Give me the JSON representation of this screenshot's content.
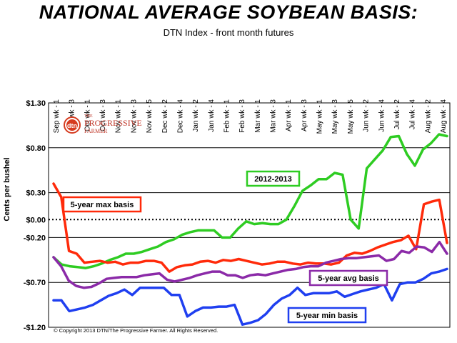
{
  "chart_data": {
    "type": "line",
    "title": "NATIONAL AVERAGE SOYBEAN BASIS:",
    "subtitle": "DTN Index - front month futures",
    "ylabel": "Cents per bushel",
    "ylim": [
      -1.2,
      1.3
    ],
    "yticks": [
      {
        "value": 1.3,
        "label": "$1.30"
      },
      {
        "value": 0.8,
        "label": "$0.80"
      },
      {
        "value": 0.3,
        "label": "$0.30"
      },
      {
        "value": 0.0,
        "label": "$0.00"
      },
      {
        "value": -0.2,
        "label": "-$0.20"
      },
      {
        "value": -0.7,
        "label": "-$0.70"
      },
      {
        "value": -1.2,
        "label": "-$1.20"
      }
    ],
    "xticks": [
      "Sep wk - 1",
      "Sep wk - 3",
      "Oct wk - 1",
      "Oct wk - 3",
      "Nov wk - 1",
      "Nov wk - 3",
      "Nov wk - 5",
      "Dec wk - 2",
      "Dec wk - 4",
      "Jan wk - 2",
      "Jan wk - 4",
      "Feb wk - 1",
      "Feb wk - 3",
      "Mar wk - 1",
      "Mar wk - 3",
      "Apr wk - 1",
      "Apr wk - 3",
      "May wk - 1",
      "May wk - 3",
      "May wk - 5",
      "Jun wk - 2",
      "Jun wk - 4",
      "Jul wk - 2",
      "Jul wk - 4",
      "Aug wk - 2",
      "Aug wk - 4"
    ],
    "series": [
      {
        "name": "2012-2013",
        "color": "#2ecc22",
        "values": [
          -0.42,
          -0.5,
          -0.52,
          -0.53,
          -0.54,
          -0.52,
          -0.49,
          -0.45,
          -0.42,
          -0.38,
          -0.38,
          -0.36,
          -0.33,
          -0.3,
          -0.25,
          -0.22,
          -0.17,
          -0.14,
          -0.12,
          -0.12,
          -0.12,
          -0.2,
          -0.2,
          -0.1,
          -0.02,
          -0.05,
          -0.04,
          -0.05,
          -0.05,
          0.0,
          0.15,
          0.32,
          0.38,
          0.45,
          0.45,
          0.52,
          0.5,
          0.0,
          -0.1,
          0.57,
          0.67,
          0.77,
          0.92,
          0.93,
          0.73,
          0.6,
          0.78,
          0.85,
          0.95,
          0.93
        ]
      },
      {
        "name": "5-year max basis",
        "color": "#ff2a0a",
        "values": [
          0.4,
          0.25,
          -0.35,
          -0.38,
          -0.48,
          -0.47,
          -0.46,
          -0.48,
          -0.47,
          -0.5,
          -0.48,
          -0.48,
          -0.46,
          -0.46,
          -0.48,
          -0.58,
          -0.53,
          -0.51,
          -0.5,
          -0.47,
          -0.46,
          -0.48,
          -0.45,
          -0.46,
          -0.44,
          -0.46,
          -0.48,
          -0.5,
          -0.49,
          -0.47,
          -0.47,
          -0.49,
          -0.5,
          -0.48,
          -0.49,
          -0.49,
          -0.5,
          -0.48,
          -0.4,
          -0.37,
          -0.38,
          -0.35,
          -0.31,
          -0.28,
          -0.25,
          -0.23,
          -0.18,
          -0.33,
          0.17,
          0.2,
          0.22,
          -0.26
        ]
      },
      {
        "name": "5-year avg basis",
        "color": "#8b2aa8",
        "values": [
          -0.42,
          -0.52,
          -0.68,
          -0.74,
          -0.76,
          -0.75,
          -0.71,
          -0.66,
          -0.65,
          -0.64,
          -0.64,
          -0.64,
          -0.62,
          -0.61,
          -0.6,
          -0.67,
          -0.69,
          -0.67,
          -0.65,
          -0.62,
          -0.6,
          -0.58,
          -0.58,
          -0.62,
          -0.62,
          -0.65,
          -0.62,
          -0.61,
          -0.62,
          -0.6,
          -0.58,
          -0.56,
          -0.55,
          -0.53,
          -0.52,
          -0.52,
          -0.48,
          -0.46,
          -0.44,
          -0.43,
          -0.43,
          -0.42,
          -0.41,
          -0.4,
          -0.46,
          -0.44,
          -0.35,
          -0.37,
          -0.3,
          -0.31,
          -0.36,
          -0.25,
          -0.38
        ]
      },
      {
        "name": "5-year min basis",
        "color": "#1f3ff0",
        "values": [
          -0.9,
          -0.9,
          -1.02,
          -1.0,
          -0.98,
          -0.95,
          -0.9,
          -0.85,
          -0.82,
          -0.78,
          -0.84,
          -0.76,
          -0.76,
          -0.76,
          -0.76,
          -0.84,
          -0.84,
          -1.08,
          -1.02,
          -0.98,
          -0.98,
          -0.97,
          -0.97,
          -0.95,
          -1.17,
          -1.15,
          -1.12,
          -1.05,
          -0.95,
          -0.88,
          -0.84,
          -0.76,
          -0.84,
          -0.82,
          -0.82,
          -0.82,
          -0.8,
          -0.86,
          -0.83,
          -0.8,
          -0.78,
          -0.76,
          -0.72,
          -0.9,
          -0.72,
          -0.7,
          -0.7,
          -0.66,
          -0.6,
          -0.58,
          -0.55
        ]
      }
    ],
    "annotations": [
      {
        "text": "2012-2013",
        "color": "#2ecc22"
      },
      {
        "text": "5-year max basis",
        "color": "#ff2a0a"
      },
      {
        "text": "5-year avg basis",
        "color": "#8b2aa8"
      },
      {
        "text": "5-year min basis",
        "color": "#1f3ff0"
      }
    ],
    "reference_line": {
      "value": 0.0,
      "style": "dotted"
    },
    "grid": true
  },
  "logo": {
    "text_top": "THE",
    "text_main": "PROGRESSIVE",
    "text_sub": "FARMER",
    "badge": "dtn"
  },
  "copyright": "© Copyright 2013 DTN/The Progressive Farmer. All Rights Reserved."
}
